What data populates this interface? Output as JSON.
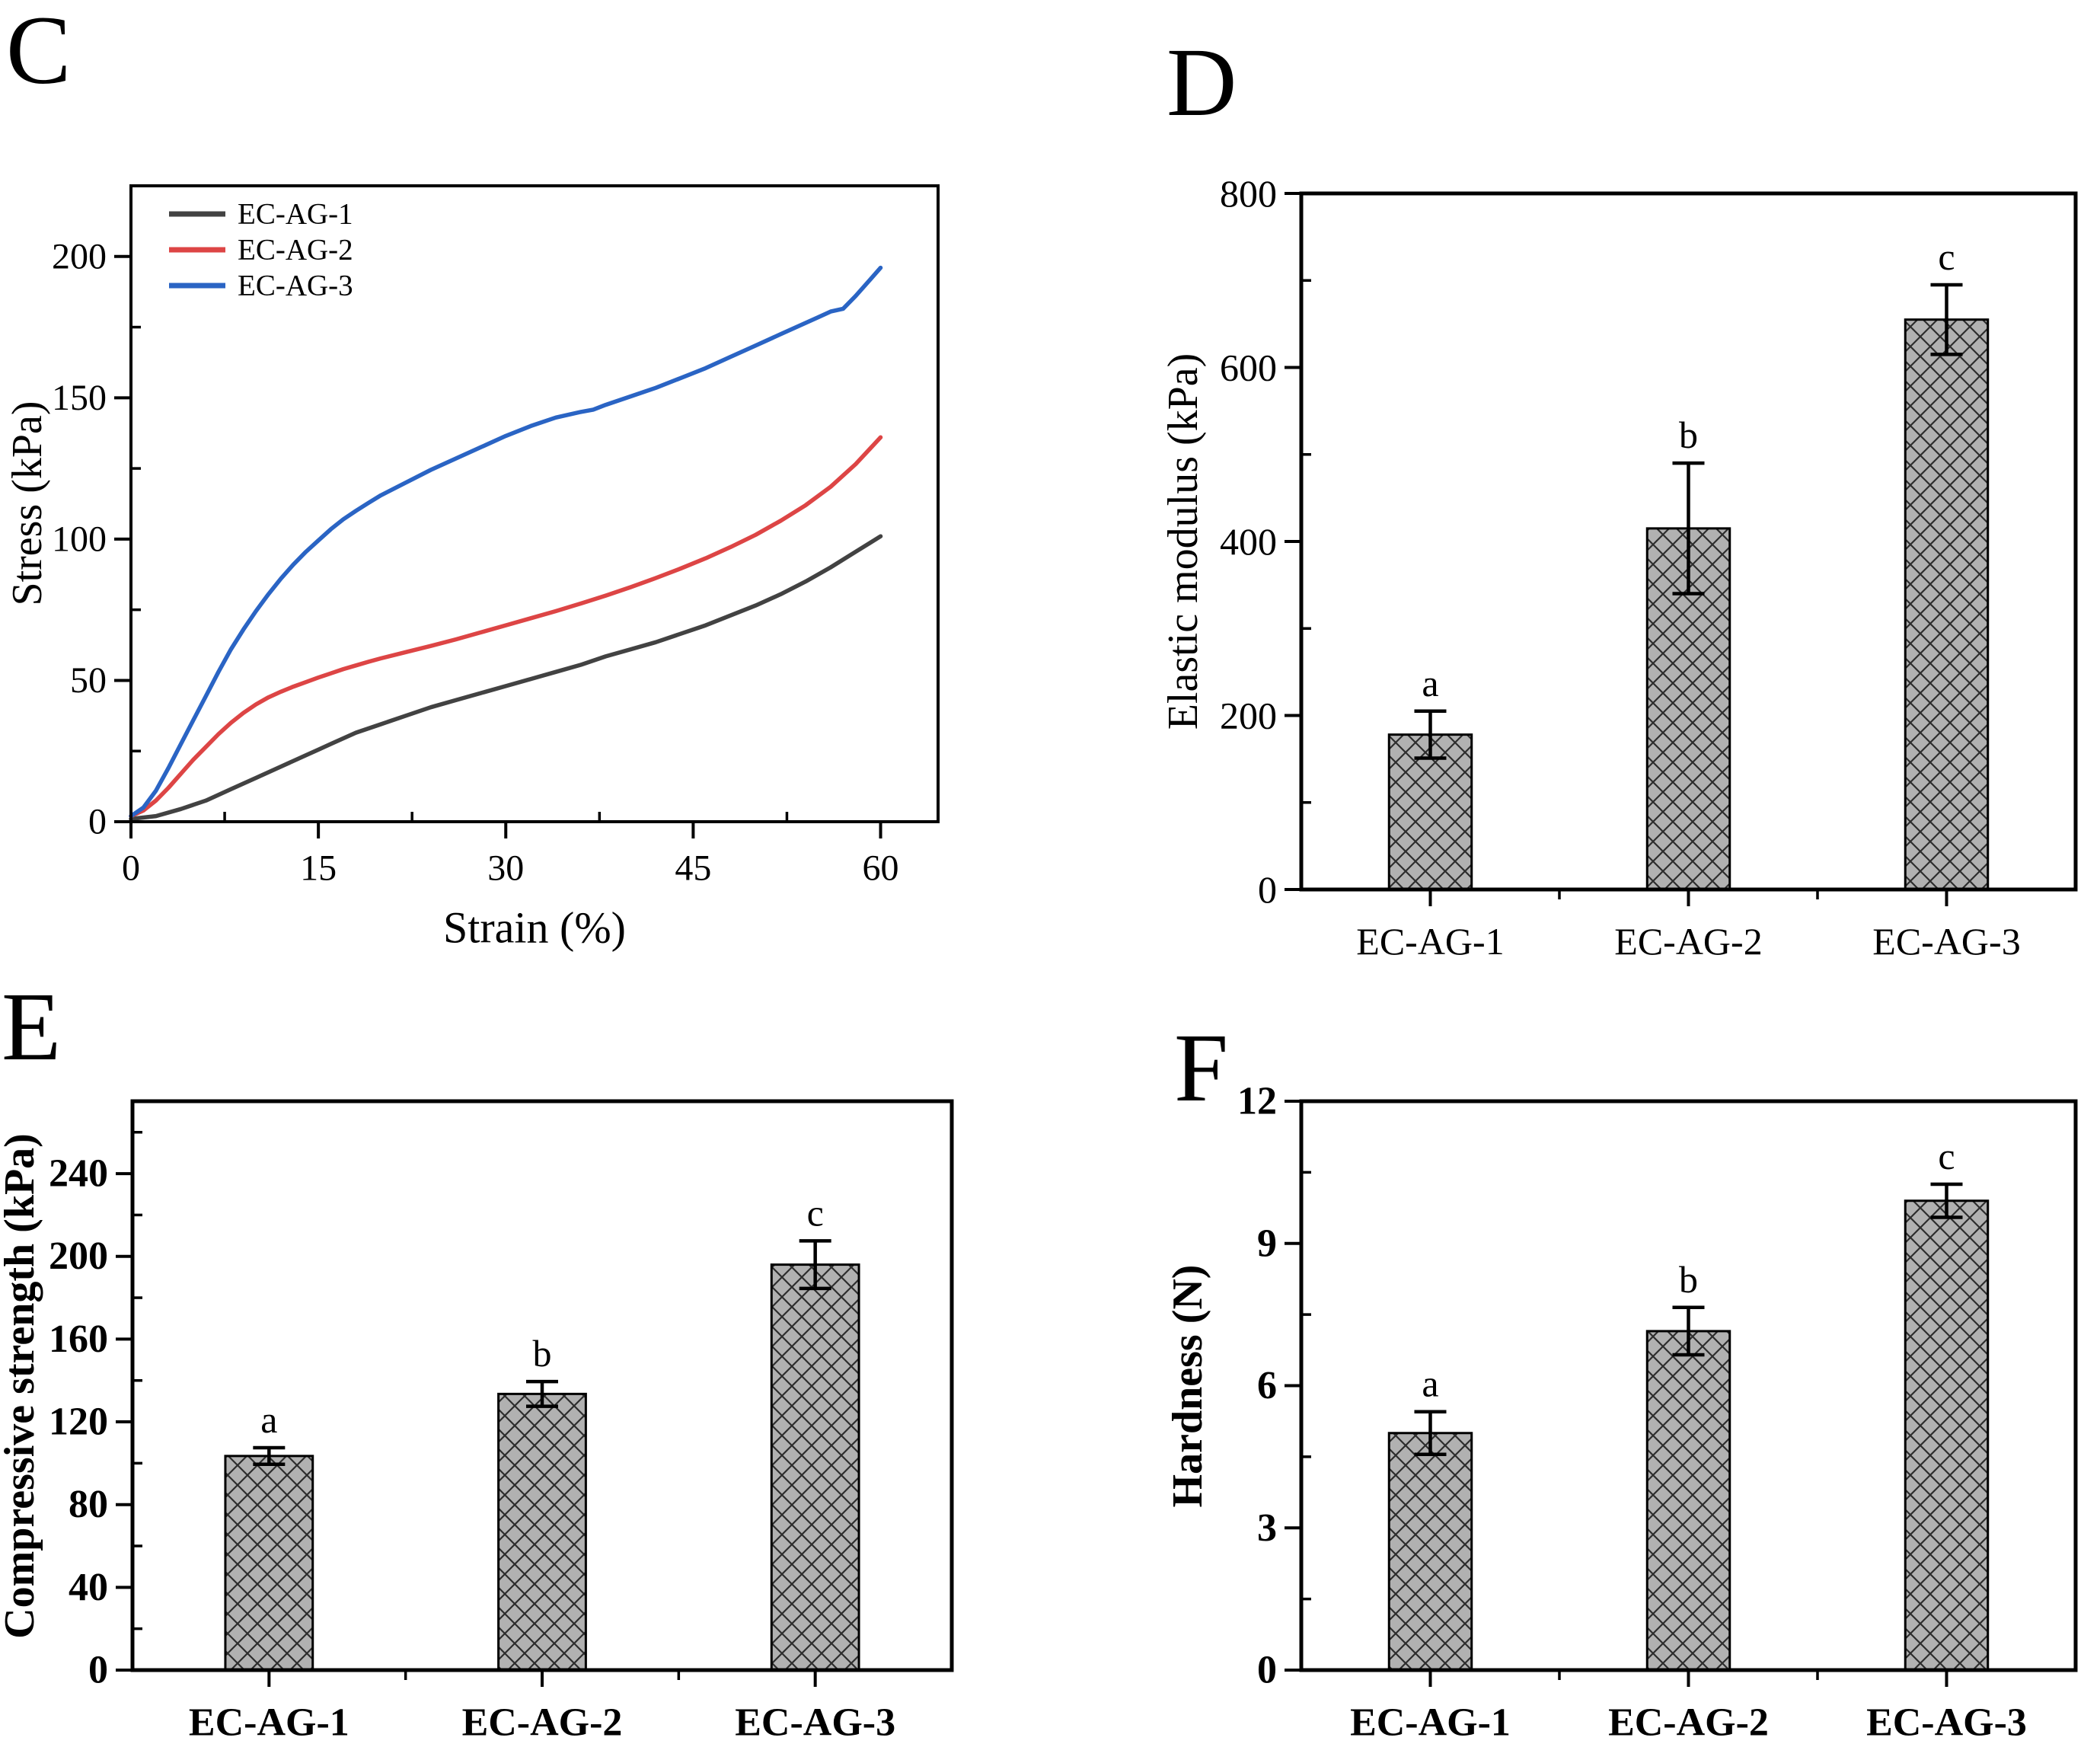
{
  "chart_data": [
    {
      "panel_label": "C",
      "type": "line",
      "xlabel": "Strain (%)",
      "ylabel": "Stress (kPa)",
      "xlim": [
        0,
        64.6
      ],
      "ylim": [
        0,
        225
      ],
      "xticks": [
        0,
        15,
        30,
        45,
        60
      ],
      "yticks": [
        0,
        50,
        100,
        150,
        200
      ],
      "x_minor_step": 7.5,
      "y_minor_step": 25,
      "grid": false,
      "legend_position": "top-left",
      "series": [
        {
          "name": "EC-AG-1",
          "color": "#424242",
          "points": [
            [
              0,
              1
            ],
            [
              2,
              2
            ],
            [
              4,
              4.5
            ],
            [
              6,
              7.5
            ],
            [
              8,
              11.5
            ],
            [
              10,
              15.5
            ],
            [
              12,
              19.5
            ],
            [
              14,
              23.5
            ],
            [
              15,
              25.5
            ],
            [
              16,
              27.5
            ],
            [
              18,
              31.5
            ],
            [
              20,
              34.5
            ],
            [
              22,
              37.5
            ],
            [
              24,
              40.5
            ],
            [
              26,
              43
            ],
            [
              28,
              45.5
            ],
            [
              30,
              48
            ],
            [
              32,
              50.5
            ],
            [
              34,
              53
            ],
            [
              36,
              55.5
            ],
            [
              38,
              58.5
            ],
            [
              40,
              61
            ],
            [
              42,
              63.5
            ],
            [
              44,
              66.5
            ],
            [
              46,
              69.5
            ],
            [
              48,
              73
            ],
            [
              50,
              76.5
            ],
            [
              52,
              80.5
            ],
            [
              54,
              85
            ],
            [
              56,
              90
            ],
            [
              58,
              95.5
            ],
            [
              60,
              101
            ]
          ]
        },
        {
          "name": "EC-AG-2",
          "color": "#dd4545",
          "points": [
            [
              0,
              2
            ],
            [
              1,
              4
            ],
            [
              2,
              7.5
            ],
            [
              3,
              12
            ],
            [
              4,
              17
            ],
            [
              5,
              22
            ],
            [
              6,
              26.5
            ],
            [
              7,
              31
            ],
            [
              8,
              35
            ],
            [
              9,
              38.5
            ],
            [
              10,
              41.5
            ],
            [
              11,
              44
            ],
            [
              12,
              46
            ],
            [
              13,
              47.8
            ],
            [
              14,
              49.4
            ],
            [
              15,
              51
            ],
            [
              16,
              52.5
            ],
            [
              17,
              54
            ],
            [
              18,
              55.3
            ],
            [
              19,
              56.6
            ],
            [
              20,
              57.8
            ],
            [
              22,
              60
            ],
            [
              24,
              62.2
            ],
            [
              26,
              64.5
            ],
            [
              28,
              67
            ],
            [
              30,
              69.5
            ],
            [
              32,
              72
            ],
            [
              34,
              74.5
            ],
            [
              36,
              77.2
            ],
            [
              38,
              80
            ],
            [
              40,
              83
            ],
            [
              42,
              86.2
            ],
            [
              44,
              89.6
            ],
            [
              46,
              93.2
            ],
            [
              48,
              97.2
            ],
            [
              50,
              101.5
            ],
            [
              52,
              106.5
            ],
            [
              54,
              112
            ],
            [
              56,
              118.5
            ],
            [
              58,
              126.5
            ],
            [
              60,
              136
            ]
          ]
        },
        {
          "name": "EC-AG-3",
          "color": "#2a64c4",
          "points": [
            [
              0,
              2
            ],
            [
              1,
              5
            ],
            [
              2,
              11
            ],
            [
              3,
              19
            ],
            [
              4,
              27.5
            ],
            [
              5,
              36
            ],
            [
              6,
              44.5
            ],
            [
              7,
              53
            ],
            [
              8,
              61
            ],
            [
              9,
              68
            ],
            [
              10,
              74.5
            ],
            [
              11,
              80.5
            ],
            [
              12,
              86
            ],
            [
              13,
              91
            ],
            [
              14,
              95.5
            ],
            [
              15,
              99.5
            ],
            [
              16,
              103.5
            ],
            [
              17,
              107
            ],
            [
              18,
              110
            ],
            [
              19,
              112.8
            ],
            [
              20,
              115.5
            ],
            [
              22,
              120
            ],
            [
              24,
              124.5
            ],
            [
              26,
              128.5
            ],
            [
              28,
              132.5
            ],
            [
              30,
              136.5
            ],
            [
              32,
              140
            ],
            [
              34,
              143
            ],
            [
              36,
              145
            ],
            [
              37,
              145.8
            ],
            [
              38,
              147.5
            ],
            [
              40,
              150.5
            ],
            [
              42,
              153.5
            ],
            [
              44,
              157
            ],
            [
              46,
              160.5
            ],
            [
              48,
              164.5
            ],
            [
              50,
              168.5
            ],
            [
              52,
              172.5
            ],
            [
              54,
              176.5
            ],
            [
              55,
              178.5
            ],
            [
              56,
              180.5
            ],
            [
              57,
              181.5
            ],
            [
              58,
              186
            ],
            [
              59,
              191
            ],
            [
              60,
              196
            ]
          ]
        }
      ]
    },
    {
      "panel_label": "D",
      "type": "bar",
      "ylabel": "Elastic modulus (kPa)",
      "categories": [
        "EC-AG-1",
        "EC-AG-2",
        "EC-AG-3"
      ],
      "values": [
        178,
        415,
        655
      ],
      "errors": [
        27,
        75,
        40
      ],
      "sig_labels": [
        "a",
        "b",
        "c"
      ],
      "ylim": [
        0,
        800
      ],
      "yticks": [
        0,
        200,
        400,
        600,
        800
      ],
      "y_minor_step": 100,
      "grid": false,
      "bar_fill": "#b1b1b1",
      "bar_edge": "#000000",
      "hatch": "diagonal-crosshatch",
      "hatch_color": "#2d2d2d"
    },
    {
      "panel_label": "E",
      "type": "bar",
      "ylabel": "Compressive strength (kPa)",
      "categories": [
        "EC-AG-1",
        "EC-AG-2",
        "EC-AG-3"
      ],
      "values": [
        103.5,
        133.5,
        196
      ],
      "errors": [
        4,
        6,
        11.5
      ],
      "sig_labels": [
        "a",
        "b",
        "c"
      ],
      "ylim": [
        0,
        275
      ],
      "yticks": [
        0,
        40,
        80,
        120,
        160,
        200,
        240
      ],
      "y_minor_step": 20,
      "grid": false,
      "bar_fill": "#b1b1b1",
      "bar_edge": "#000000",
      "hatch": "diagonal-crosshatch",
      "hatch_color": "#2d2d2d"
    },
    {
      "panel_label": "F",
      "type": "bar",
      "ylabel": "Hardness (N)",
      "categories": [
        "EC-AG-1",
        "EC-AG-2",
        "EC-AG-3"
      ],
      "values": [
        5.0,
        7.15,
        9.9
      ],
      "errors": [
        0.45,
        0.5,
        0.35
      ],
      "sig_labels": [
        "a",
        "b",
        "c"
      ],
      "ylim": [
        0,
        12
      ],
      "yticks": [
        0,
        3,
        6,
        9,
        12
      ],
      "y_minor_step": 1.5,
      "grid": false,
      "bar_fill": "#b1b1b1",
      "bar_edge": "#000000",
      "hatch": "diagonal-crosshatch",
      "hatch_color": "#2d2d2d"
    }
  ]
}
